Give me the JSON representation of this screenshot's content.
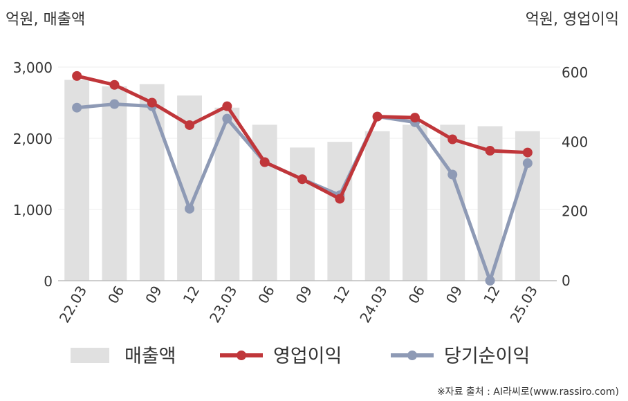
{
  "chart_data": {
    "type": "bar",
    "unit_left": "억원, 매출액",
    "unit_right": "억원, 영업이익",
    "categories": [
      "22.03",
      "06",
      "09",
      "12",
      "23.03",
      "06",
      "09",
      "12",
      "24.03",
      "06",
      "09",
      "12",
      "25.03"
    ],
    "left_ticks": [
      "3,000",
      "2,000",
      "1,000",
      "0"
    ],
    "right_ticks": [
      "600",
      "400",
      "200",
      "0"
    ],
    "ylim_left": [
      0,
      3000
    ],
    "ylim_right": [
      0,
      600
    ],
    "grid": true,
    "legend_position": "bottom",
    "series": [
      {
        "name": "매출액",
        "kind": "bar",
        "axis": "left",
        "color": "#e0e0e0",
        "values": [
          2820,
          2730,
          2760,
          2600,
          2430,
          2190,
          1870,
          1950,
          2100,
          2190,
          2190,
          2170,
          2100
        ]
      },
      {
        "name": "영업이익",
        "kind": "line",
        "axis": "right",
        "color": "#c0363a",
        "values": [
          575,
          550,
          500,
          437,
          490,
          333,
          285,
          230,
          461,
          458,
          397,
          365,
          360
        ]
      },
      {
        "name": "당기순이익",
        "kind": "line",
        "axis": "right",
        "color": "#8e9ab5",
        "values": [
          486,
          496,
          490,
          202,
          455,
          333,
          285,
          240,
          461,
          445,
          298,
          0,
          330
        ]
      }
    ]
  },
  "source": "※자료 출처 : AI라씨로(www.rassiro.com)"
}
